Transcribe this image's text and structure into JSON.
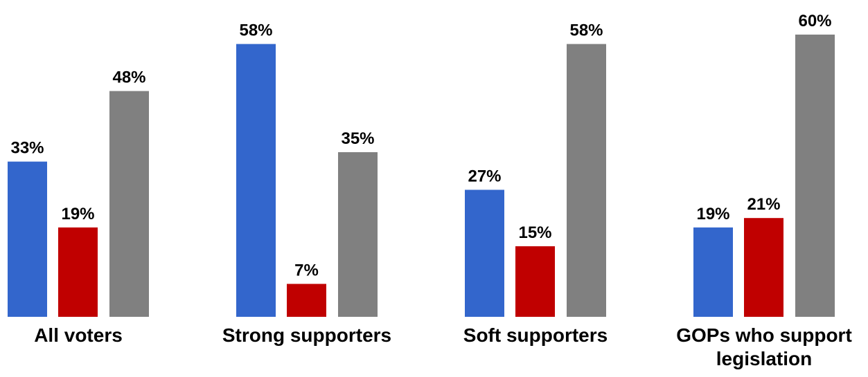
{
  "chart_data": {
    "type": "bar",
    "categories": [
      [
        "All voters"
      ],
      [
        "Strong supporters"
      ],
      [
        "Soft supporters"
      ],
      [
        "GOPs who support",
        "legislation"
      ]
    ],
    "series": [
      {
        "color": "#3366cc",
        "values": [
          33,
          58,
          27,
          19
        ]
      },
      {
        "color": "#c00000",
        "values": [
          19,
          7,
          15,
          21
        ]
      },
      {
        "color": "#808080",
        "values": [
          48,
          35,
          58,
          60
        ]
      }
    ],
    "value_suffix": "%",
    "title": "",
    "xlabel": "",
    "ylabel": "",
    "ylim": [
      0,
      60
    ],
    "grid": false,
    "legend": "none"
  }
}
